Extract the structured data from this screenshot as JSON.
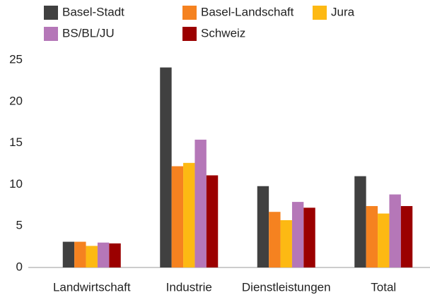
{
  "chart_data": {
    "type": "bar",
    "categories": [
      "Landwirtschaft",
      "Industrie",
      "Dienstleistungen",
      "Total"
    ],
    "series": [
      {
        "name": "Basel-Stadt",
        "color": "#404040",
        "values": [
          3.1,
          24.1,
          9.8,
          11.0
        ]
      },
      {
        "name": "Basel-Landschaft",
        "color": "#f58220",
        "values": [
          3.1,
          12.2,
          6.7,
          7.4
        ]
      },
      {
        "name": "Jura",
        "color": "#fdb913",
        "values": [
          2.6,
          12.6,
          5.7,
          6.5
        ]
      },
      {
        "name": "BS/BL/JU",
        "color": "#b577b8",
        "values": [
          3.0,
          15.4,
          7.9,
          8.8
        ]
      },
      {
        "name": "Schweiz",
        "color": "#9b0000",
        "values": [
          2.9,
          11.1,
          7.2,
          7.4
        ]
      }
    ],
    "ylim": [
      0,
      25
    ],
    "yticks": [
      0,
      5,
      10,
      15,
      20,
      25
    ],
    "grid": false
  }
}
